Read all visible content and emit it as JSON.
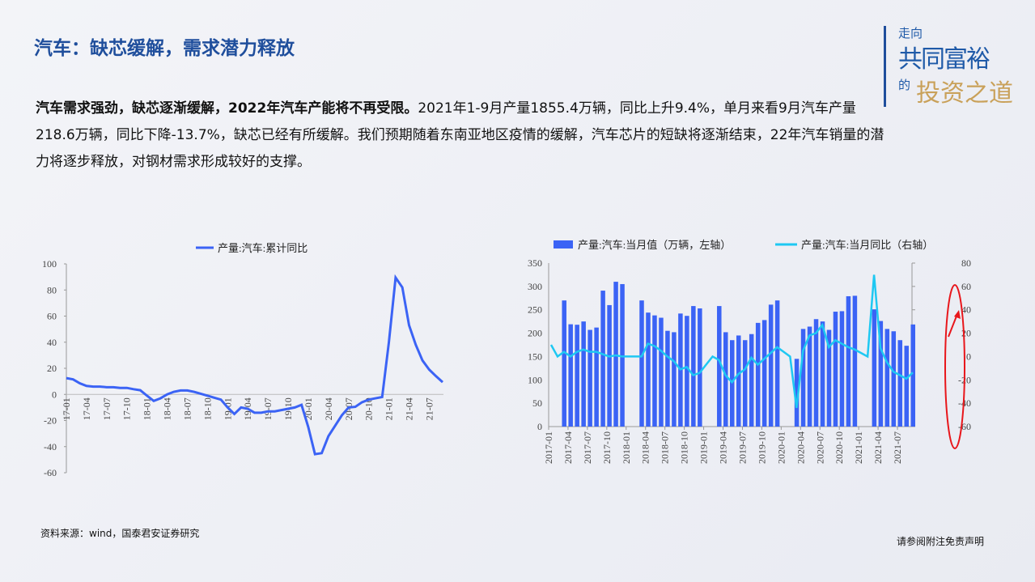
{
  "header": {
    "title": "汽车：缺芯缓解，需求潜力释放"
  },
  "logo": {
    "line1": "走向",
    "line2": "共同富裕",
    "line3": "的",
    "line4": "投资之道"
  },
  "body": {
    "bold": "汽车需求强劲，缺芯逐渐缓解，2022年汽车产能将不再受限。",
    "text": "2021年1-9月产量1855.4万辆，同比上升9.4%，单月来看9月汽车产量218.6万辆，同比下降-13.7%，缺芯已经有所缓解。我们预期随着东南亚地区疫情的缓解，汽车芯片的短缺将逐渐结束，22年汽车销量的潜力将逐步释放，对钢材需求形成较好的支撑。"
  },
  "footer": {
    "source": "资料来源：wind，国泰君安证券研究",
    "disclaimer": "请参阅附注免责声明"
  },
  "colors": {
    "bar": "#3b63f5",
    "line_left": "#3b63f5",
    "line_right": "#1ec8f2",
    "annotation": "#e8161b"
  },
  "chart_data": [
    {
      "type": "line",
      "legend": "产量:汽车:累计同比",
      "legend_position": "top",
      "ylim": [
        -60,
        100
      ],
      "yticks": [
        100,
        80,
        60,
        40,
        20,
        0,
        -20,
        -40,
        -60
      ],
      "xticks": [
        "17-01",
        "17-04",
        "17-07",
        "17-10",
        "18-01",
        "18-04",
        "18-07",
        "18-10",
        "19-01",
        "19-04",
        "19-07",
        "19-10",
        "20-01",
        "20-04",
        "20-07",
        "20-10",
        "21-01",
        "21-04",
        "21-07"
      ],
      "series": [
        {
          "name": "产量:汽车:累计同比",
          "values": [
            12.5,
            11.5,
            8.5,
            6.5,
            6,
            6,
            5.5,
            5.5,
            5,
            5,
            4,
            3.2,
            -1,
            -5,
            -3,
            0,
            2,
            3,
            3,
            2,
            0.5,
            -1,
            -2.5,
            -4,
            -10,
            -15,
            -10,
            -11,
            -14,
            -14,
            -13,
            -13,
            -12,
            -11,
            -10,
            -8,
            -25,
            -45.8,
            -45,
            -32,
            -24,
            -16,
            -10,
            -9.5,
            -6,
            -4,
            -3,
            -2,
            40,
            89.5,
            82,
            53,
            38,
            26,
            19,
            14,
            9.4
          ]
        }
      ]
    },
    {
      "type": "bar+line",
      "legend_position": "top",
      "ylim_left": [
        0,
        350
      ],
      "ylim_right": [
        -60,
        80
      ],
      "yticks_left": [
        350,
        300,
        250,
        200,
        150,
        100,
        50,
        0
      ],
      "yticks_right": [
        80,
        60,
        40,
        20,
        0,
        -20,
        -40,
        -60
      ],
      "xticks": [
        "2017-01",
        "2017-04",
        "2017-07",
        "2017-10",
        "2018-01",
        "2018-04",
        "2018-07",
        "2018-10",
        "2019-01",
        "2019-04",
        "2019-07",
        "2019-10",
        "2020-01",
        "2020-04",
        "2020-07",
        "2020-10",
        "2021-01",
        "2021-04",
        "2021-07"
      ],
      "series": [
        {
          "name": "产量:汽车:当月值（万辆，左轴）",
          "type": "bar",
          "axis": "left",
          "values": [
            null,
            null,
            270,
            219,
            218,
            225,
            207,
            212,
            291,
            260,
            310,
            305,
            null,
            null,
            270,
            244,
            238,
            233,
            205,
            202,
            242,
            237,
            258,
            253,
            null,
            null,
            258,
            202,
            185,
            195,
            185,
            198,
            222,
            228,
            261,
            270,
            null,
            null,
            145,
            209,
            214,
            230,
            225,
            207,
            246,
            247,
            279,
            280,
            null,
            null,
            251,
            226,
            209,
            204,
            185,
            173,
            218.6
          ]
        },
        {
          "name": "产量:汽车:当月同比（右轴）",
          "type": "line",
          "axis": "right",
          "values": [
            10,
            0,
            4,
            0,
            4,
            6,
            4,
            4,
            2,
            0,
            1,
            0,
            0,
            0,
            0,
            11,
            9,
            5,
            0,
            -4,
            -11,
            -9,
            -16,
            -14,
            -7,
            0,
            -3,
            -16,
            -22,
            -15,
            -11,
            -1,
            -7,
            -2,
            3,
            8,
            4,
            0,
            -44,
            5,
            18,
            20,
            27,
            8,
            14,
            11,
            8,
            6,
            3,
            0,
            70,
            7,
            -5,
            -13,
            -16,
            -19,
            -13.7
          ]
        }
      ]
    }
  ]
}
